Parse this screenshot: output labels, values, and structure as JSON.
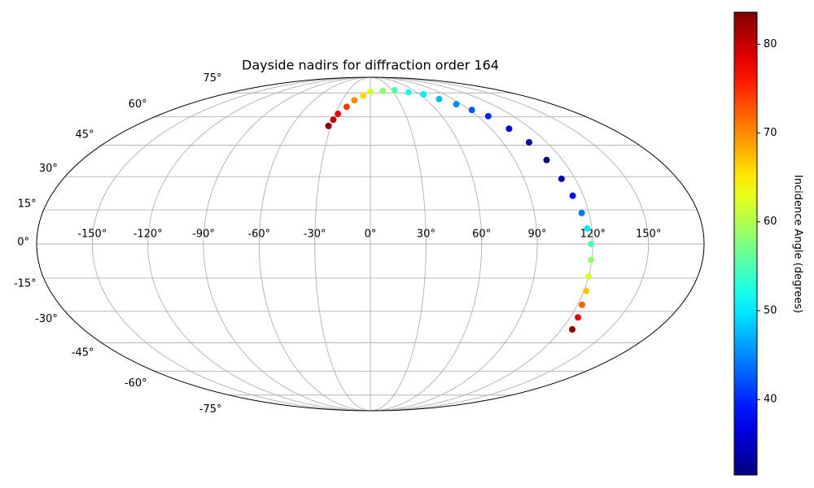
{
  "chart_data": {
    "type": "scatter",
    "projection": "mollweide",
    "title": "Dayside nadirs for diffraction order 164",
    "x": [
      -32,
      -30,
      -28,
      -22.5,
      -17,
      -8.5,
      0,
      17,
      34,
      49.5,
      65,
      75,
      85,
      92,
      99,
      103.5,
      108,
      110,
      112,
      114,
      116,
      117.5,
      119,
      119.5,
      120,
      121.3,
      122.6,
      124.7,
      126.8
    ],
    "y": [
      55,
      58.4,
      61.7,
      65.9,
      70,
      73,
      75.9,
      76.5,
      77,
      75.5,
      74,
      70.8,
      67.5,
      64,
      60.4,
      53.5,
      46.5,
      37.8,
      29,
      21.3,
      13.6,
      6.8,
      0,
      -7,
      -14.3,
      -20.7,
      -27,
      -32.8,
      -38.5
    ],
    "c": [
      83,
      80.5,
      78,
      74,
      70,
      66,
      62,
      58.5,
      55,
      52.5,
      50,
      47.5,
      45,
      42.5,
      40,
      36.5,
      34,
      31.5,
      34,
      38,
      44,
      50,
      55,
      58.5,
      62,
      67,
      72,
      78,
      83
    ],
    "colormap": "jet",
    "clim": [
      31.5,
      83.6
    ],
    "colorbar": {
      "label": "Incidence Angle (degrees)",
      "ticks": [
        40,
        50,
        60,
        70,
        80
      ]
    },
    "xlim": [
      -180,
      180
    ],
    "ylim": [
      -90,
      90
    ],
    "xticks": [
      {
        "value": -150,
        "label": "-150°"
      },
      {
        "value": -120,
        "label": "-120°"
      },
      {
        "value": -90,
        "label": "-90°"
      },
      {
        "value": -60,
        "label": "-60°"
      },
      {
        "value": -30,
        "label": "-30°"
      },
      {
        "value": 0,
        "label": "0°"
      },
      {
        "value": 30,
        "label": "30°"
      },
      {
        "value": 60,
        "label": "60°"
      },
      {
        "value": 90,
        "label": "90°"
      },
      {
        "value": 120,
        "label": "120°"
      },
      {
        "value": 150,
        "label": "150°"
      }
    ],
    "yticks": [
      {
        "value": -75,
        "label": "-75°"
      },
      {
        "value": -60,
        "label": "-60°"
      },
      {
        "value": -45,
        "label": "-45°"
      },
      {
        "value": -30,
        "label": "-30°"
      },
      {
        "value": -15,
        "label": "-15°"
      },
      {
        "value": 0,
        "label": "0°"
      },
      {
        "value": 15,
        "label": "15°"
      },
      {
        "value": 30,
        "label": "30°"
      },
      {
        "value": 45,
        "label": "45°"
      },
      {
        "value": 60,
        "label": "60°"
      },
      {
        "value": 75,
        "label": "75°"
      }
    ],
    "grid": true
  }
}
